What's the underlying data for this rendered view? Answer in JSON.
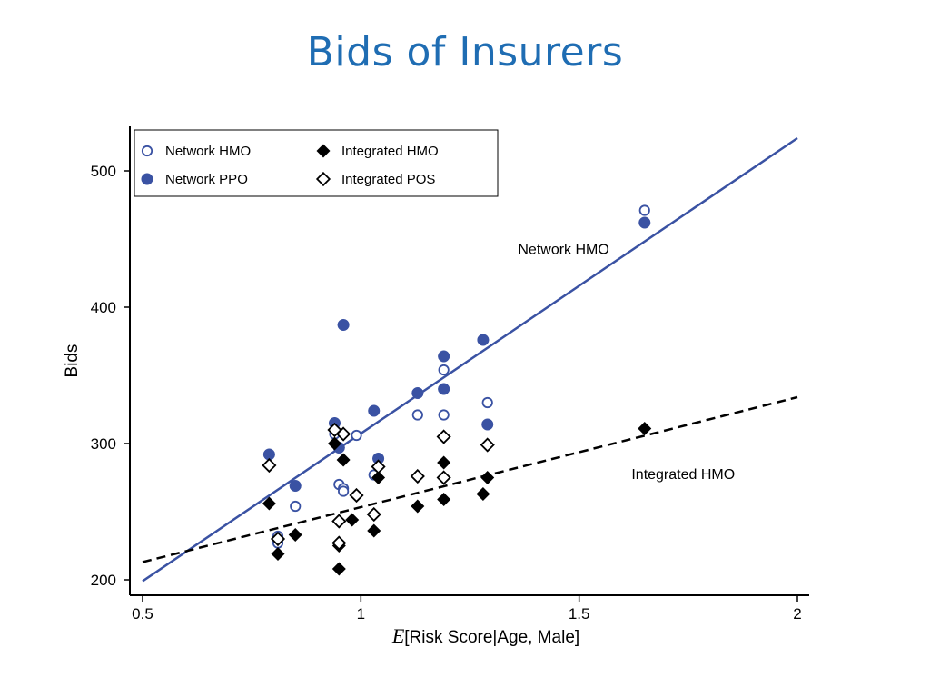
{
  "slide": {
    "title": "Bids of Insurers"
  },
  "chart_data": {
    "type": "scatter",
    "xlabel_prefix": "E",
    "xlabel_rest": "[Risk Score|Age, Male]",
    "ylabel": "Bids",
    "xlim": [
      0.5,
      2
    ],
    "ylim": [
      200,
      525
    ],
    "xticks": [
      0.5,
      1,
      1.5,
      2
    ],
    "xtick_labels": [
      "0.5",
      "1",
      "1.5",
      "2"
    ],
    "yticks": [
      200,
      300,
      400,
      500
    ],
    "ytick_labels": [
      "200",
      "300",
      "400",
      "500"
    ],
    "grid": false,
    "legend_position": "top-left",
    "colors": {
      "network": "#3a52a3",
      "integrated": "#000000"
    },
    "series": [
      {
        "name": "Network HMO",
        "marker": "circle-open",
        "points": [
          [
            0.81,
            232
          ],
          [
            0.81,
            227
          ],
          [
            0.85,
            254
          ],
          [
            0.94,
            307
          ],
          [
            0.95,
            270
          ],
          [
            0.96,
            267
          ],
          [
            0.96,
            265
          ],
          [
            0.99,
            306
          ],
          [
            1.03,
            277
          ],
          [
            1.13,
            321
          ],
          [
            1.19,
            321
          ],
          [
            1.19,
            354
          ],
          [
            1.29,
            330
          ],
          [
            1.65,
            471
          ]
        ]
      },
      {
        "name": "Network PPO",
        "marker": "circle-filled",
        "points": [
          [
            0.79,
            292
          ],
          [
            0.85,
            269
          ],
          [
            0.94,
            315
          ],
          [
            0.95,
            297
          ],
          [
            0.96,
            387
          ],
          [
            1.03,
            324
          ],
          [
            1.04,
            289
          ],
          [
            1.13,
            337
          ],
          [
            1.19,
            364
          ],
          [
            1.19,
            340
          ],
          [
            1.28,
            376
          ],
          [
            1.29,
            314
          ],
          [
            1.65,
            462
          ]
        ]
      },
      {
        "name": "Integrated HMO",
        "marker": "diamond-filled",
        "points": [
          [
            0.79,
            256
          ],
          [
            0.81,
            219
          ],
          [
            0.85,
            233
          ],
          [
            0.94,
            300
          ],
          [
            0.95,
            225
          ],
          [
            0.95,
            208
          ],
          [
            0.96,
            288
          ],
          [
            0.98,
            244
          ],
          [
            1.03,
            236
          ],
          [
            1.04,
            275
          ],
          [
            1.13,
            254
          ],
          [
            1.19,
            259
          ],
          [
            1.19,
            286
          ],
          [
            1.28,
            263
          ],
          [
            1.29,
            275
          ],
          [
            1.65,
            311
          ]
        ]
      },
      {
        "name": "Integrated POS",
        "marker": "diamond-open",
        "points": [
          [
            0.79,
            284
          ],
          [
            0.81,
            230
          ],
          [
            0.94,
            310
          ],
          [
            0.95,
            243
          ],
          [
            0.95,
            227
          ],
          [
            0.96,
            307
          ],
          [
            0.99,
            262
          ],
          [
            1.03,
            248
          ],
          [
            1.04,
            283
          ],
          [
            1.13,
            276
          ],
          [
            1.19,
            275
          ],
          [
            1.19,
            305
          ],
          [
            1.29,
            299
          ]
        ]
      }
    ],
    "fit_lines": [
      {
        "label": "Network HMO",
        "style": "solid",
        "color": "#3a52a3",
        "from": [
          0.5,
          199
        ],
        "to": [
          2,
          524
        ]
      },
      {
        "label": "Integrated HMO",
        "style": "dashed",
        "color": "#000000",
        "from": [
          0.5,
          213
        ],
        "to": [
          2,
          334
        ]
      }
    ],
    "annotations": [
      {
        "text": "Network HMO",
        "x": 1.36,
        "y": 439
      },
      {
        "text": "Integrated HMO",
        "x": 1.62,
        "y": 274
      }
    ]
  }
}
